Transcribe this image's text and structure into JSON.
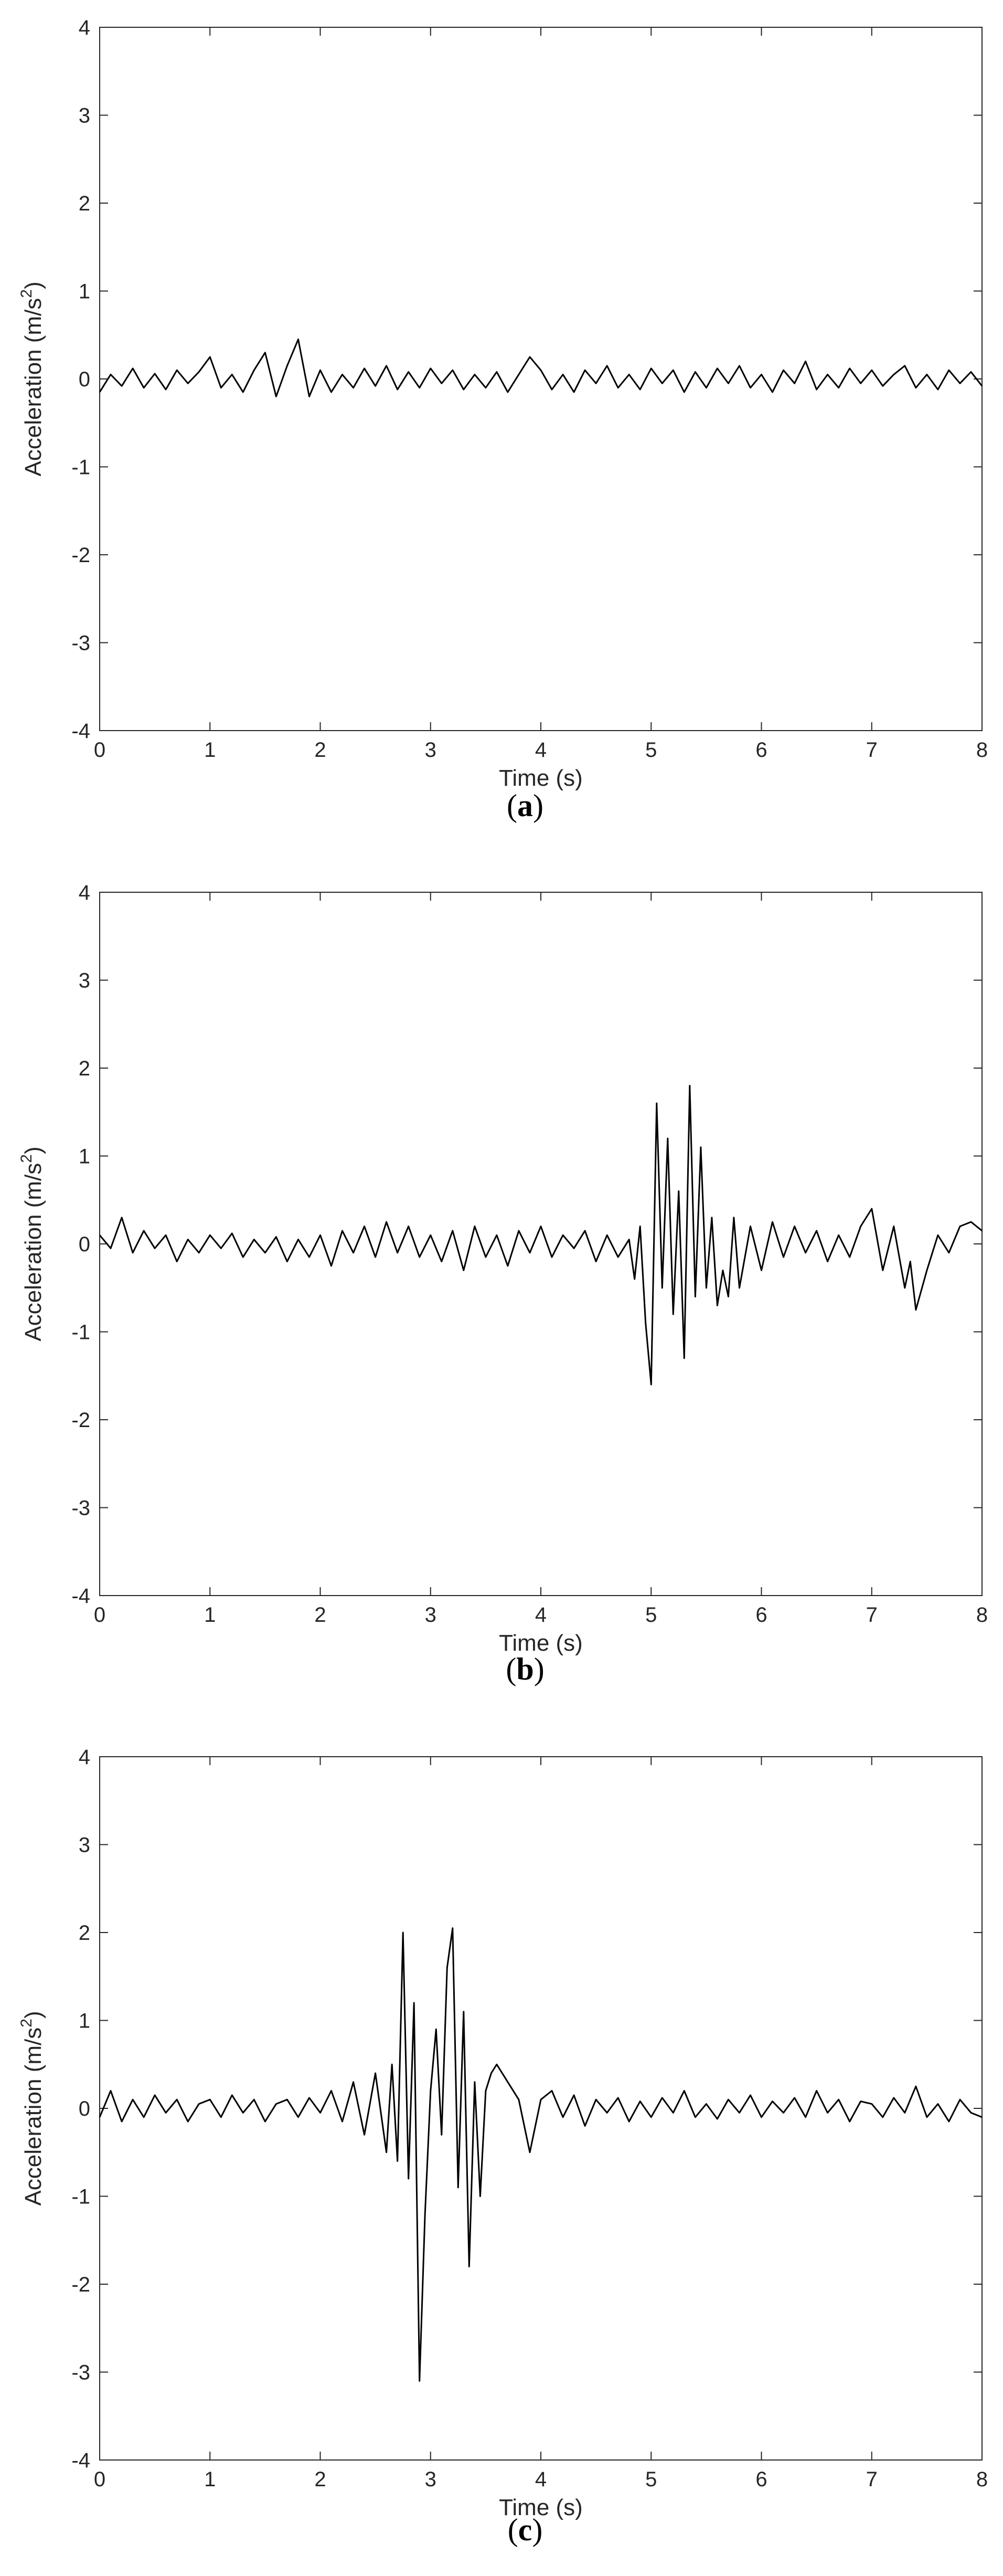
{
  "chart_data": [
    {
      "type": "line",
      "panel_label": "a",
      "caption_open": "(",
      "caption_close": ")",
      "xlabel": "Time (s)",
      "ylabel_main": "Acceleration (m/s",
      "ylabel_sup": "2",
      "ylabel_close": ")",
      "xlim": [
        0,
        8
      ],
      "ylim": [
        -4,
        4
      ],
      "xticks": [
        "0",
        "1",
        "2",
        "3",
        "4",
        "5",
        "6",
        "7",
        "8"
      ],
      "yticks": [
        "-4",
        "-3",
        "-2",
        "-1",
        "0",
        "1",
        "2",
        "3",
        "4"
      ],
      "grid": false,
      "line_color": "#000000",
      "series": [
        {
          "x": [
            0.0,
            0.1,
            0.2,
            0.3,
            0.4,
            0.5,
            0.6,
            0.7,
            0.8,
            0.9,
            1.0,
            1.1,
            1.2,
            1.3,
            1.4,
            1.5,
            1.6,
            1.7,
            1.8,
            1.9,
            2.0,
            2.1,
            2.2,
            2.3,
            2.4,
            2.5,
            2.6,
            2.7,
            2.8,
            2.9,
            3.0,
            3.1,
            3.2,
            3.3,
            3.4,
            3.5,
            3.6,
            3.7,
            3.8,
            3.9,
            4.0,
            4.1,
            4.2,
            4.3,
            4.4,
            4.5,
            4.6,
            4.7,
            4.8,
            4.9,
            5.0,
            5.1,
            5.2,
            5.3,
            5.4,
            5.5,
            5.6,
            5.7,
            5.8,
            5.9,
            6.0,
            6.1,
            6.2,
            6.3,
            6.4,
            6.5,
            6.6,
            6.7,
            6.8,
            6.9,
            7.0,
            7.1,
            7.2,
            7.3,
            7.4,
            7.5,
            7.6,
            7.7,
            7.8,
            7.9,
            8.0
          ],
          "values": [
            -0.15,
            0.05,
            -0.08,
            0.12,
            -0.1,
            0.06,
            -0.12,
            0.1,
            -0.05,
            0.08,
            0.25,
            -0.1,
            0.05,
            -0.15,
            0.1,
            0.3,
            -0.2,
            0.15,
            0.45,
            -0.2,
            0.1,
            -0.15,
            0.05,
            -0.1,
            0.12,
            -0.08,
            0.15,
            -0.12,
            0.08,
            -0.1,
            0.12,
            -0.05,
            0.1,
            -0.12,
            0.05,
            -0.1,
            0.08,
            -0.15,
            0.05,
            0.25,
            0.1,
            -0.12,
            0.05,
            -0.15,
            0.1,
            -0.05,
            0.15,
            -0.1,
            0.05,
            -0.12,
            0.12,
            -0.05,
            0.1,
            -0.15,
            0.08,
            -0.1,
            0.12,
            -0.05,
            0.15,
            -0.1,
            0.05,
            -0.15,
            0.1,
            -0.05,
            0.2,
            -0.12,
            0.05,
            -0.1,
            0.12,
            -0.05,
            0.1,
            -0.08,
            0.05,
            0.15,
            -0.1,
            0.05,
            -0.12,
            0.1,
            -0.05,
            0.08,
            -0.08
          ]
        }
      ]
    },
    {
      "type": "line",
      "panel_label": "b",
      "caption_open": "(",
      "caption_close": ")",
      "xlabel": "Time (s)",
      "ylabel_main": "Acceleration (m/s",
      "ylabel_sup": "2",
      "ylabel_close": ")",
      "xlim": [
        0,
        8
      ],
      "ylim": [
        -4,
        4
      ],
      "xticks": [
        "0",
        "1",
        "2",
        "3",
        "4",
        "5",
        "6",
        "7",
        "8"
      ],
      "yticks": [
        "-4",
        "-3",
        "-2",
        "-1",
        "0",
        "1",
        "2",
        "3",
        "4"
      ],
      "grid": false,
      "line_color": "#000000",
      "series": [
        {
          "x": [
            0.0,
            0.1,
            0.2,
            0.3,
            0.4,
            0.5,
            0.6,
            0.7,
            0.8,
            0.9,
            1.0,
            1.1,
            1.2,
            1.3,
            1.4,
            1.5,
            1.6,
            1.7,
            1.8,
            1.9,
            2.0,
            2.1,
            2.2,
            2.3,
            2.4,
            2.5,
            2.6,
            2.7,
            2.8,
            2.9,
            3.0,
            3.1,
            3.2,
            3.3,
            3.4,
            3.5,
            3.6,
            3.7,
            3.8,
            3.9,
            4.0,
            4.1,
            4.2,
            4.3,
            4.4,
            4.5,
            4.6,
            4.7,
            4.8,
            4.85,
            4.9,
            4.95,
            5.0,
            5.05,
            5.1,
            5.15,
            5.2,
            5.25,
            5.3,
            5.35,
            5.4,
            5.45,
            5.5,
            5.55,
            5.6,
            5.65,
            5.7,
            5.75,
            5.8,
            5.9,
            6.0,
            6.1,
            6.2,
            6.3,
            6.4,
            6.5,
            6.6,
            6.7,
            6.8,
            6.9,
            7.0,
            7.1,
            7.2,
            7.3,
            7.35,
            7.4,
            7.5,
            7.6,
            7.7,
            7.8,
            7.9,
            8.0
          ],
          "values": [
            0.1,
            -0.05,
            0.3,
            -0.1,
            0.15,
            -0.05,
            0.1,
            -0.2,
            0.05,
            -0.1,
            0.1,
            -0.05,
            0.12,
            -0.15,
            0.05,
            -0.1,
            0.08,
            -0.2,
            0.05,
            -0.15,
            0.1,
            -0.25,
            0.15,
            -0.1,
            0.2,
            -0.15,
            0.25,
            -0.1,
            0.2,
            -0.15,
            0.1,
            -0.2,
            0.15,
            -0.3,
            0.2,
            -0.15,
            0.1,
            -0.25,
            0.15,
            -0.1,
            0.2,
            -0.15,
            0.1,
            -0.05,
            0.15,
            -0.2,
            0.1,
            -0.15,
            0.05,
            -0.4,
            0.2,
            -0.9,
            -1.6,
            1.6,
            -0.5,
            1.2,
            -0.8,
            0.6,
            -1.3,
            1.8,
            -0.6,
            1.1,
            -0.5,
            0.3,
            -0.7,
            -0.3,
            -0.6,
            0.3,
            -0.5,
            0.2,
            -0.3,
            0.25,
            -0.15,
            0.2,
            -0.1,
            0.15,
            -0.2,
            0.1,
            -0.15,
            0.2,
            0.4,
            -0.3,
            0.2,
            -0.5,
            -0.2,
            -0.75,
            -0.3,
            0.1,
            -0.1,
            0.2,
            0.25,
            0.15
          ]
        }
      ]
    },
    {
      "type": "line",
      "panel_label": "c",
      "caption_open": "(",
      "caption_close": ")",
      "xlabel": "Time (s)",
      "ylabel_main": "Acceleration (m/s",
      "ylabel_sup": "2",
      "ylabel_close": ")",
      "xlim": [
        0,
        8
      ],
      "ylim": [
        -4,
        4
      ],
      "xticks": [
        "0",
        "1",
        "2",
        "3",
        "4",
        "5",
        "6",
        "7",
        "8"
      ],
      "yticks": [
        "-4",
        "-3",
        "-2",
        "-1",
        "0",
        "1",
        "2",
        "3",
        "4"
      ],
      "grid": false,
      "line_color": "#000000",
      "series": [
        {
          "x": [
            0.0,
            0.1,
            0.2,
            0.3,
            0.4,
            0.5,
            0.6,
            0.7,
            0.8,
            0.9,
            1.0,
            1.1,
            1.2,
            1.3,
            1.4,
            1.5,
            1.6,
            1.7,
            1.8,
            1.9,
            2.0,
            2.1,
            2.2,
            2.3,
            2.4,
            2.5,
            2.6,
            2.65,
            2.7,
            2.75,
            2.8,
            2.85,
            2.9,
            2.95,
            3.0,
            3.05,
            3.1,
            3.15,
            3.2,
            3.25,
            3.3,
            3.35,
            3.4,
            3.45,
            3.5,
            3.55,
            3.6,
            3.7,
            3.8,
            3.9,
            4.0,
            4.1,
            4.2,
            4.3,
            4.4,
            4.5,
            4.6,
            4.7,
            4.8,
            4.9,
            5.0,
            5.1,
            5.2,
            5.3,
            5.4,
            5.5,
            5.6,
            5.7,
            5.8,
            5.9,
            6.0,
            6.1,
            6.2,
            6.3,
            6.4,
            6.5,
            6.6,
            6.7,
            6.8,
            6.9,
            7.0,
            7.1,
            7.2,
            7.3,
            7.4,
            7.5,
            7.6,
            7.7,
            7.8,
            7.9,
            8.0
          ],
          "values": [
            -0.1,
            0.2,
            -0.15,
            0.1,
            -0.1,
            0.15,
            -0.05,
            0.1,
            -0.15,
            0.05,
            0.1,
            -0.1,
            0.15,
            -0.05,
            0.1,
            -0.15,
            0.05,
            0.1,
            -0.1,
            0.12,
            -0.05,
            0.2,
            -0.15,
            0.3,
            -0.3,
            0.4,
            -0.5,
            0.5,
            -0.6,
            2.0,
            -0.8,
            1.2,
            -3.1,
            -1.2,
            0.2,
            0.9,
            -0.3,
            1.6,
            2.05,
            -0.9,
            1.1,
            -1.8,
            0.3,
            -1.0,
            0.2,
            0.4,
            0.5,
            0.3,
            0.1,
            -0.5,
            0.1,
            0.2,
            -0.1,
            0.15,
            -0.2,
            0.1,
            -0.05,
            0.12,
            -0.15,
            0.08,
            -0.1,
            0.12,
            -0.05,
            0.2,
            -0.1,
            0.05,
            -0.12,
            0.1,
            -0.05,
            0.15,
            -0.1,
            0.08,
            -0.05,
            0.12,
            -0.1,
            0.2,
            -0.05,
            0.1,
            -0.15,
            0.08,
            0.05,
            -0.1,
            0.12,
            -0.05,
            0.25,
            -0.1,
            0.05,
            -0.15,
            0.1,
            -0.05,
            -0.1
          ]
        }
      ]
    }
  ]
}
